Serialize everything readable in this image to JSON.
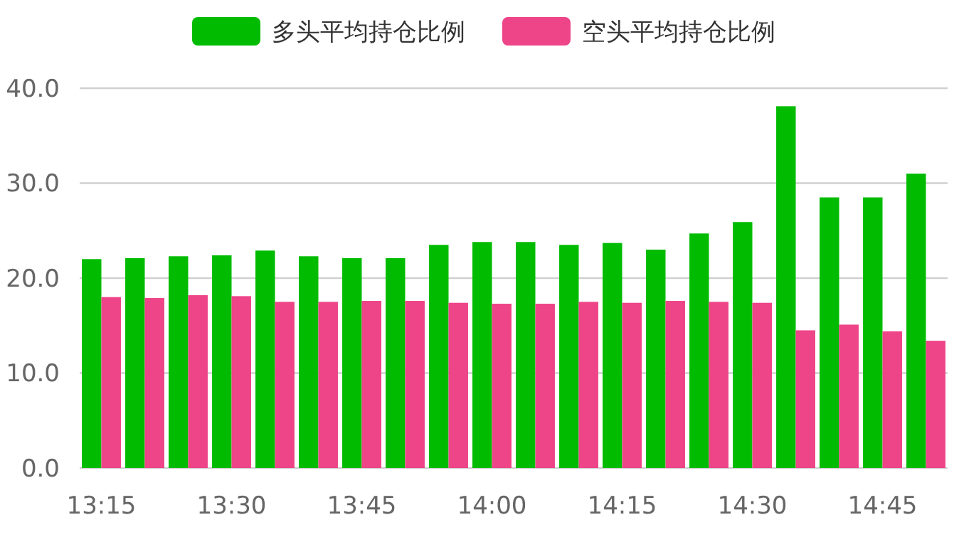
{
  "chart_data": {
    "type": "bar",
    "categories": [
      "13:15",
      null,
      null,
      "13:30",
      null,
      null,
      "13:45",
      null,
      null,
      "14:00",
      null,
      null,
      "14:15",
      null,
      null,
      "14:30",
      null,
      null,
      "14:45",
      null
    ],
    "series": [
      {
        "name": "多头平均持仓比例",
        "color": "#00bb00",
        "values": [
          22.0,
          22.1,
          22.3,
          22.4,
          22.9,
          22.3,
          22.1,
          22.1,
          23.5,
          23.8,
          23.8,
          23.5,
          23.7,
          23.0,
          24.7,
          25.9,
          38.1,
          28.5,
          28.5,
          31.0
        ]
      },
      {
        "name": "空头平均持仓比例",
        "color": "#ee4488",
        "values": [
          18.0,
          17.9,
          18.2,
          18.1,
          17.5,
          17.5,
          17.6,
          17.6,
          17.4,
          17.3,
          17.3,
          17.5,
          17.4,
          17.6,
          17.5,
          17.4,
          14.5,
          15.1,
          14.4,
          13.4
        ]
      }
    ],
    "ylim": [
      0,
      40
    ],
    "yticks": [
      {
        "value": 0,
        "label": "0.0"
      },
      {
        "value": 10,
        "label": "10.0"
      },
      {
        "value": 20,
        "label": "20.0"
      },
      {
        "value": 30,
        "label": "30.0"
      },
      {
        "value": 40,
        "label": "40.0"
      }
    ],
    "grid": "y",
    "legend": "top"
  }
}
